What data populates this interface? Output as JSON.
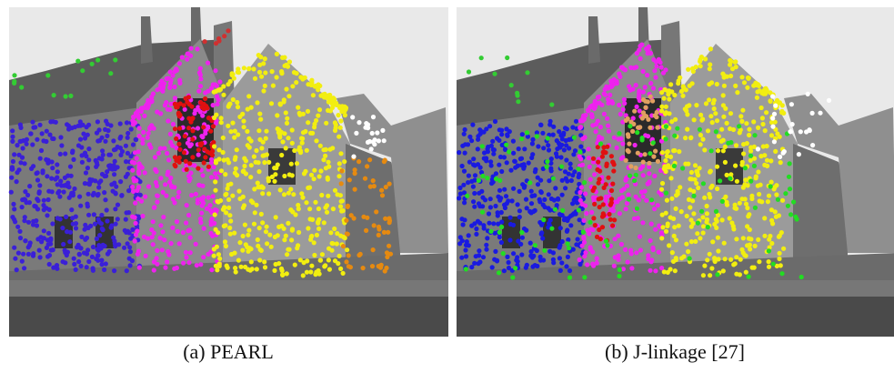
{
  "figure": {
    "panels": [
      {
        "caption": "(a) PEARL"
      },
      {
        "caption": "(b) J-linkage [27]"
      }
    ]
  }
}
